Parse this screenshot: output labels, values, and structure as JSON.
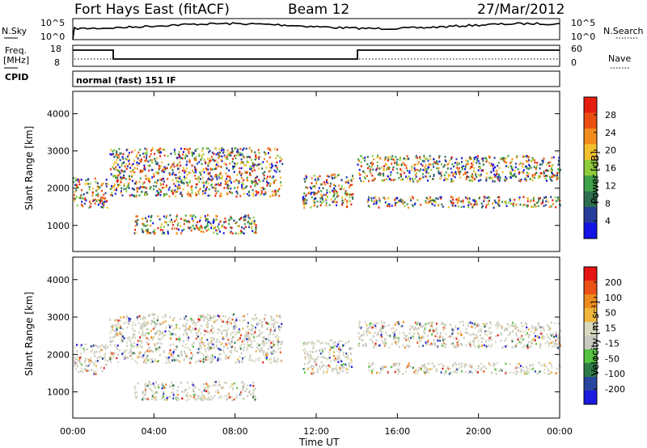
{
  "header": {
    "station": "Fort Hays East (fitACF)",
    "beam": "Beam 12",
    "date": "27/Mar/2012"
  },
  "panels": {
    "sky_label": "N.Sky",
    "search_label": "N.Search",
    "freq_label_line1": "Freq.",
    "freq_label_line2": "[MHz]",
    "cpid_label": "CPID",
    "nave_label": "Nave",
    "scale_10_5": "10^5",
    "scale_10_0": "10^0",
    "freq_ticks": [
      "18",
      "8"
    ],
    "nave_ticks": [
      "60",
      "0"
    ],
    "cpid_text": "normal (fast) 151 IF"
  },
  "colors": {
    "power": [
      "#1414e6",
      "#283c9b",
      "#2f6e4f",
      "#3fa14a",
      "#8fcc3c",
      "#f2c12e",
      "#f28c1e",
      "#eb4e12",
      "#e61e10"
    ],
    "velocity": [
      "#1a1ae0",
      "#29469e",
      "#2e7b48",
      "#55c241",
      "#c9c9c1",
      "#d9d9c0",
      "#f0b53c",
      "#f08c1e",
      "#eb5217",
      "#e61414"
    ]
  },
  "chart_data": [
    {
      "type": "heatmap",
      "title": "Power",
      "ylabel": "Slant Range [km]",
      "xlabel": "Time UT",
      "x_ticks": [
        "00:00",
        "04:00",
        "08:00",
        "12:00",
        "16:00",
        "20:00",
        "00:00"
      ],
      "y_ticks": [
        "1000",
        "2000",
        "3000",
        "4000"
      ],
      "ylim": [
        300,
        4600
      ],
      "xlim_hours": [
        0,
        24
      ],
      "colorbar_label": "Power [dB]",
      "colorbar_ticks": [
        "28",
        "24",
        "20",
        "16",
        "12",
        "8",
        "4"
      ],
      "scatter_bands": [
        {
          "t_start": 0.0,
          "t_end": 1.7,
          "r_start": 1500,
          "r_end": 2300
        },
        {
          "t_start": 1.8,
          "t_end": 10.3,
          "r_start": 1800,
          "r_end": 3100
        },
        {
          "t_start": 3.0,
          "t_end": 9.0,
          "r_start": 800,
          "r_end": 1300
        },
        {
          "t_start": 11.3,
          "t_end": 13.8,
          "r_start": 1500,
          "r_end": 2400
        },
        {
          "t_start": 14.0,
          "t_end": 24.0,
          "r_start": 2200,
          "r_end": 2900
        },
        {
          "t_start": 14.5,
          "t_end": 24.0,
          "r_start": 1500,
          "r_end": 1800
        }
      ]
    },
    {
      "type": "heatmap",
      "title": "Velocity",
      "ylabel": "Slant Range [km]",
      "xlabel": "Time UT",
      "x_ticks": [
        "00:00",
        "04:00",
        "08:00",
        "12:00",
        "16:00",
        "20:00",
        "00:00"
      ],
      "y_ticks": [
        "1000",
        "2000",
        "3000",
        "4000"
      ],
      "ylim": [
        300,
        4600
      ],
      "xlim_hours": [
        0,
        24
      ],
      "colorbar_label": "Velocity [m s⁻¹]",
      "colorbar_ticks": [
        "200",
        "100",
        "50",
        "15",
        "-15",
        "-50",
        "-100",
        "-200"
      ],
      "scatter_bands": [
        {
          "t_start": 0.0,
          "t_end": 1.7,
          "r_start": 1500,
          "r_end": 2300
        },
        {
          "t_start": 1.8,
          "t_end": 10.3,
          "r_start": 1800,
          "r_end": 3100
        },
        {
          "t_start": 3.0,
          "t_end": 9.0,
          "r_start": 800,
          "r_end": 1300
        },
        {
          "t_start": 11.3,
          "t_end": 13.8,
          "r_start": 1500,
          "r_end": 2400
        },
        {
          "t_start": 14.0,
          "t_end": 24.0,
          "r_start": 2200,
          "r_end": 2900
        },
        {
          "t_start": 14.5,
          "t_end": 24.0,
          "r_start": 1500,
          "r_end": 1800
        }
      ]
    }
  ]
}
